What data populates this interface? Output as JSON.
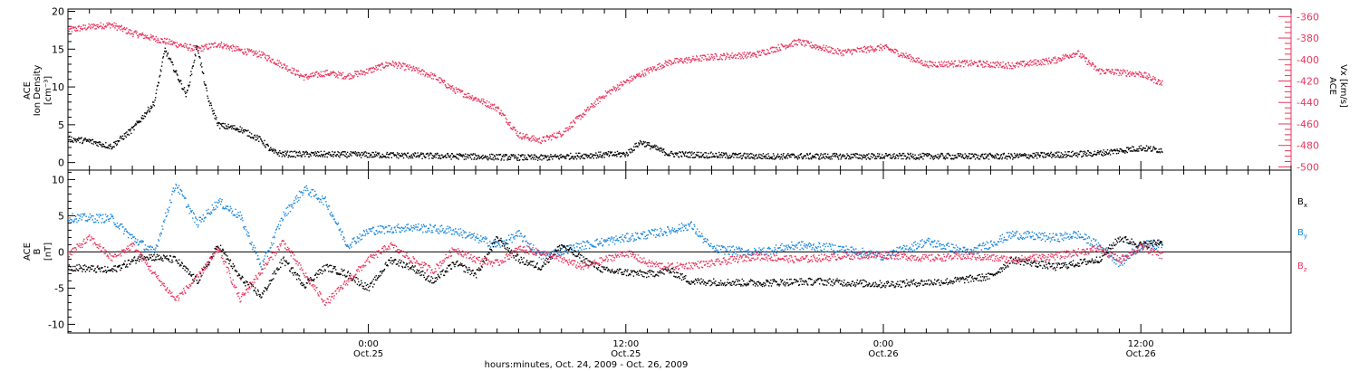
{
  "chart_data": [
    {
      "type": "scatter",
      "panel": "top",
      "time_range": [
        "2009-10-24T10:00",
        "2009-10-26T19:00"
      ],
      "ylabel_left": [
        "ACE",
        "Ion Density",
        "[cm⁻³]"
      ],
      "ylabel_right": [
        "ACE",
        "Vx [km/s]"
      ],
      "ylim_left": [
        -1,
        20.3
      ],
      "yticks_left": [
        "0",
        "5",
        "10",
        "15",
        "20"
      ],
      "ylim_right": [
        -503,
        -353
      ],
      "yticks_right": [
        "-360",
        "-380",
        "-400",
        "-420",
        "-440",
        "-460",
        "-480",
        "-500"
      ],
      "grid": false,
      "series": [
        {
          "axis": "left",
          "color": "#000000",
          "points": [
            [
              "2009-10-24T10:00",
              3.2
            ],
            [
              "2009-10-24T11:00",
              2.9
            ],
            [
              "2009-10-24T12:00",
              2.2
            ],
            [
              "2009-10-24T13:00",
              4.5
            ],
            [
              "2009-10-24T14:00",
              8.0
            ],
            [
              "2009-10-24T14:30",
              15.0
            ],
            [
              "2009-10-24T15:00",
              12.0
            ],
            [
              "2009-10-24T15:30",
              9.0
            ],
            [
              "2009-10-24T16:00",
              15.5
            ],
            [
              "2009-10-24T16:30",
              8.5
            ],
            [
              "2009-10-24T17:00",
              5.0
            ],
            [
              "2009-10-24T18:00",
              4.5
            ],
            [
              "2009-10-24T19:00",
              3.0
            ],
            [
              "2009-10-24T19:30",
              1.5
            ],
            [
              "2009-10-24T20:00",
              1.2
            ],
            [
              "2009-10-25T00:00",
              1.1
            ],
            [
              "2009-10-25T06:00",
              0.8
            ],
            [
              "2009-10-25T08:00",
              0.7
            ],
            [
              "2009-10-25T10:00",
              1.0
            ],
            [
              "2009-10-25T12:00",
              1.2
            ],
            [
              "2009-10-25T12:40",
              2.8
            ],
            [
              "2009-10-25T14:00",
              1.2
            ],
            [
              "2009-10-25T18:00",
              0.9
            ],
            [
              "2009-10-26T00:00",
              0.9
            ],
            [
              "2009-10-26T06:00",
              0.9
            ],
            [
              "2009-10-26T10:00",
              1.3
            ],
            [
              "2009-10-26T12:00",
              2.0
            ],
            [
              "2009-10-26T13:00",
              1.7
            ]
          ]
        },
        {
          "axis": "right",
          "color": "#e8365e",
          "points": [
            [
              "2009-10-24T10:00",
              -372
            ],
            [
              "2009-10-24T11:00",
              -369
            ],
            [
              "2009-10-24T12:00",
              -367
            ],
            [
              "2009-10-24T13:00",
              -375
            ],
            [
              "2009-10-24T14:00",
              -380
            ],
            [
              "2009-10-24T15:00",
              -385
            ],
            [
              "2009-10-24T16:00",
              -390
            ],
            [
              "2009-10-24T17:00",
              -385
            ],
            [
              "2009-10-24T18:00",
              -391
            ],
            [
              "2009-10-24T19:00",
              -395
            ],
            [
              "2009-10-24T20:00",
              -405
            ],
            [
              "2009-10-24T21:00",
              -416
            ],
            [
              "2009-10-24T22:00",
              -412
            ],
            [
              "2009-10-24T23:00",
              -415
            ],
            [
              "2009-10-25T00:00",
              -410
            ],
            [
              "2009-10-25T01:00",
              -403
            ],
            [
              "2009-10-25T02:00",
              -408
            ],
            [
              "2009-10-25T03:00",
              -415
            ],
            [
              "2009-10-25T04:00",
              -428
            ],
            [
              "2009-10-25T05:00",
              -436
            ],
            [
              "2009-10-25T06:00",
              -445
            ],
            [
              "2009-10-25T07:00",
              -470
            ],
            [
              "2009-10-25T08:00",
              -475
            ],
            [
              "2009-10-25T09:00",
              -468
            ],
            [
              "2009-10-25T10:00",
              -450
            ],
            [
              "2009-10-25T11:00",
              -432
            ],
            [
              "2009-10-25T12:00",
              -420
            ],
            [
              "2009-10-25T13:00",
              -410
            ],
            [
              "2009-10-25T14:00",
              -402
            ],
            [
              "2009-10-25T16:00",
              -397
            ],
            [
              "2009-10-25T18:00",
              -395
            ],
            [
              "2009-10-25T20:00",
              -383
            ],
            [
              "2009-10-25T22:00",
              -393
            ],
            [
              "2009-10-26T00:00",
              -388
            ],
            [
              "2009-10-26T02:00",
              -404
            ],
            [
              "2009-10-26T04:00",
              -403
            ],
            [
              "2009-10-26T06:00",
              -405
            ],
            [
              "2009-10-26T08:00",
              -400
            ],
            [
              "2009-10-26T09:00",
              -393
            ],
            [
              "2009-10-26T10:00",
              -410
            ],
            [
              "2009-10-26T12:00",
              -413
            ],
            [
              "2009-10-26T13:00",
              -422
            ]
          ]
        }
      ]
    },
    {
      "type": "scatter",
      "panel": "bottom",
      "time_range": [
        "2009-10-24T10:00",
        "2009-10-26T19:00"
      ],
      "ylabel": [
        "ACE",
        "B",
        "[nT]"
      ],
      "ylim": [
        -11.2,
        11.3
      ],
      "yticks": [
        "-10",
        "-5",
        "0",
        "5",
        "10"
      ],
      "zero_line": true,
      "grid": false,
      "series": [
        {
          "name": "Bx",
          "color": "#000000",
          "points": [
            [
              "2009-10-24T10:00",
              -2.0
            ],
            [
              "2009-10-24T12:00",
              -2.5
            ],
            [
              "2009-10-24T13:30",
              -0.5
            ],
            [
              "2009-10-24T15:00",
              -1.0
            ],
            [
              "2009-10-24T16:00",
              -4.0
            ],
            [
              "2009-10-24T17:00",
              1.0
            ],
            [
              "2009-10-24T18:00",
              -3.5
            ],
            [
              "2009-10-24T19:00",
              -6.0
            ],
            [
              "2009-10-24T20:00",
              -1.0
            ],
            [
              "2009-10-24T21:00",
              -4.5
            ],
            [
              "2009-10-24T22:00",
              -2.0
            ],
            [
              "2009-10-24T23:00",
              -3.0
            ],
            [
              "2009-10-25T00:00",
              -5.0
            ],
            [
              "2009-10-25T01:00",
              -1.0
            ],
            [
              "2009-10-25T02:00",
              -2.0
            ],
            [
              "2009-10-25T03:00",
              -4.0
            ],
            [
              "2009-10-25T04:00",
              -1.5
            ],
            [
              "2009-10-25T05:00",
              -3.0
            ],
            [
              "2009-10-25T06:00",
              2.0
            ],
            [
              "2009-10-25T07:00",
              -1.0
            ],
            [
              "2009-10-25T08:00",
              -2.0
            ],
            [
              "2009-10-25T09:00",
              1.0
            ],
            [
              "2009-10-25T10:00",
              -1.0
            ],
            [
              "2009-10-25T11:00",
              -2.5
            ],
            [
              "2009-10-25T13:00",
              -3.0
            ],
            [
              "2009-10-25T14:00",
              -2.5
            ],
            [
              "2009-10-25T15:00",
              -4.0
            ],
            [
              "2009-10-25T18:00",
              -4.2
            ],
            [
              "2009-10-25T21:00",
              -4.0
            ],
            [
              "2009-10-26T00:00",
              -4.4
            ],
            [
              "2009-10-26T03:00",
              -4.0
            ],
            [
              "2009-10-26T05:00",
              -3.3
            ],
            [
              "2009-10-26T06:00",
              -1.0
            ],
            [
              "2009-10-26T08:00",
              -2.0
            ],
            [
              "2009-10-26T10:00",
              -1.0
            ],
            [
              "2009-10-26T11:00",
              2.0
            ],
            [
              "2009-10-26T12:00",
              1.0
            ],
            [
              "2009-10-26T13:00",
              1.5
            ]
          ]
        },
        {
          "name": "By",
          "color": "#1a86dc",
          "points": [
            [
              "2009-10-24T10:00",
              4.8
            ],
            [
              "2009-10-24T12:00",
              4.7
            ],
            [
              "2009-10-24T13:00",
              2.0
            ],
            [
              "2009-10-24T14:00",
              0.0
            ],
            [
              "2009-10-24T15:00",
              9.5
            ],
            [
              "2009-10-24T16:00",
              4.0
            ],
            [
              "2009-10-24T17:00",
              7.0
            ],
            [
              "2009-10-24T18:00",
              5.0
            ],
            [
              "2009-10-24T19:00",
              -2.0
            ],
            [
              "2009-10-24T20:00",
              5.0
            ],
            [
              "2009-10-24T21:00",
              8.8
            ],
            [
              "2009-10-24T22:00",
              7.0
            ],
            [
              "2009-10-24T23:00",
              1.0
            ],
            [
              "2009-10-25T00:00",
              3.0
            ],
            [
              "2009-10-25T02:00",
              3.5
            ],
            [
              "2009-10-25T04:00",
              3.0
            ],
            [
              "2009-10-25T06:00",
              1.0
            ],
            [
              "2009-10-25T07:00",
              2.5
            ],
            [
              "2009-10-25T08:00",
              -0.5
            ],
            [
              "2009-10-25T10:00",
              1.0
            ],
            [
              "2009-10-25T12:00",
              2.0
            ],
            [
              "2009-10-25T14:00",
              3.0
            ],
            [
              "2009-10-25T15:00",
              3.8
            ],
            [
              "2009-10-25T16:00",
              0.5
            ],
            [
              "2009-10-25T18:00",
              0.0
            ],
            [
              "2009-10-25T20:00",
              1.0
            ],
            [
              "2009-10-25T22:00",
              0.5
            ],
            [
              "2009-10-26T00:00",
              -0.5
            ],
            [
              "2009-10-26T02:00",
              1.5
            ],
            [
              "2009-10-26T04:00",
              0.0
            ],
            [
              "2009-10-26T06:00",
              2.5
            ],
            [
              "2009-10-26T08:00",
              2.0
            ],
            [
              "2009-10-26T09:00",
              2.5
            ],
            [
              "2009-10-26T10:00",
              1.0
            ],
            [
              "2009-10-26T11:00",
              -1.5
            ],
            [
              "2009-10-26T12:00",
              1.0
            ],
            [
              "2009-10-26T13:00",
              1.2
            ]
          ]
        },
        {
          "name": "Bz",
          "color": "#e8365e",
          "points": [
            [
              "2009-10-24T10:00",
              -0.2
            ],
            [
              "2009-10-24T11:00",
              2.0
            ],
            [
              "2009-10-24T12:00",
              -0.8
            ],
            [
              "2009-10-24T13:00",
              1.0
            ],
            [
              "2009-10-24T14:00",
              -3.0
            ],
            [
              "2009-10-24T15:00",
              -6.5
            ],
            [
              "2009-10-24T16:00",
              -3.5
            ],
            [
              "2009-10-24T17:00",
              0.5
            ],
            [
              "2009-10-24T18:00",
              -6.5
            ],
            [
              "2009-10-24T19:00",
              -2.5
            ],
            [
              "2009-10-24T20:00",
              1.5
            ],
            [
              "2009-10-24T21:00",
              -3.0
            ],
            [
              "2009-10-24T22:00",
              -7.0
            ],
            [
              "2009-10-24T23:00",
              -4.0
            ],
            [
              "2009-10-25T00:00",
              -1.0
            ],
            [
              "2009-10-25T01:00",
              1.0
            ],
            [
              "2009-10-25T02:00",
              -1.0
            ],
            [
              "2009-10-25T03:00",
              -2.5
            ],
            [
              "2009-10-25T04:00",
              0.5
            ],
            [
              "2009-10-25T05:00",
              -1.0
            ],
            [
              "2009-10-25T06:00",
              -1.5
            ],
            [
              "2009-10-25T07:00",
              0.5
            ],
            [
              "2009-10-25T08:00",
              0.0
            ],
            [
              "2009-10-25T09:00",
              -1.0
            ],
            [
              "2009-10-25T10:00",
              -2.0
            ],
            [
              "2009-10-25T11:00",
              -1.0
            ],
            [
              "2009-10-25T12:00",
              0.0
            ],
            [
              "2009-10-25T13:00",
              -1.5
            ],
            [
              "2009-10-25T14:00",
              -2.0
            ],
            [
              "2009-10-25T16:00",
              -1.5
            ],
            [
              "2009-10-25T18:00",
              -0.5
            ],
            [
              "2009-10-25T20:00",
              -1.0
            ],
            [
              "2009-10-25T22:00",
              -0.5
            ],
            [
              "2009-10-26T00:00",
              -0.3
            ],
            [
              "2009-10-26T02:00",
              -0.8
            ],
            [
              "2009-10-26T04:00",
              -0.5
            ],
            [
              "2009-10-26T06:00",
              -1.0
            ],
            [
              "2009-10-26T08:00",
              -0.5
            ],
            [
              "2009-10-26T10:00",
              0.5
            ],
            [
              "2009-10-26T11:00",
              -1.0
            ],
            [
              "2009-10-26T12:00",
              0.8
            ],
            [
              "2009-10-26T13:00",
              -0.5
            ]
          ]
        }
      ],
      "legend": [
        {
          "name": "Bx",
          "base": "B",
          "sub": "x",
          "color": "#000000"
        },
        {
          "name": "By",
          "base": "B",
          "sub": "y",
          "color": "#1a86dc"
        },
        {
          "name": "Bz",
          "base": "B",
          "sub": "z",
          "color": "#e8365e"
        }
      ]
    }
  ],
  "x_axis": {
    "major_ticks": [
      {
        "time": "2009-10-25T00:00",
        "time_label": "0:00",
        "date_label": "Oct.25"
      },
      {
        "time": "2009-10-25T12:00",
        "time_label": "12:00",
        "date_label": "Oct.25"
      },
      {
        "time": "2009-10-26T00:00",
        "time_label": "0:00",
        "date_label": "Oct.26"
      },
      {
        "time": "2009-10-26T12:00",
        "time_label": "12:00",
        "date_label": "Oct.26"
      }
    ],
    "label": "hours:minutes, Oct. 24, 2009 - Oct. 26, 2009"
  }
}
